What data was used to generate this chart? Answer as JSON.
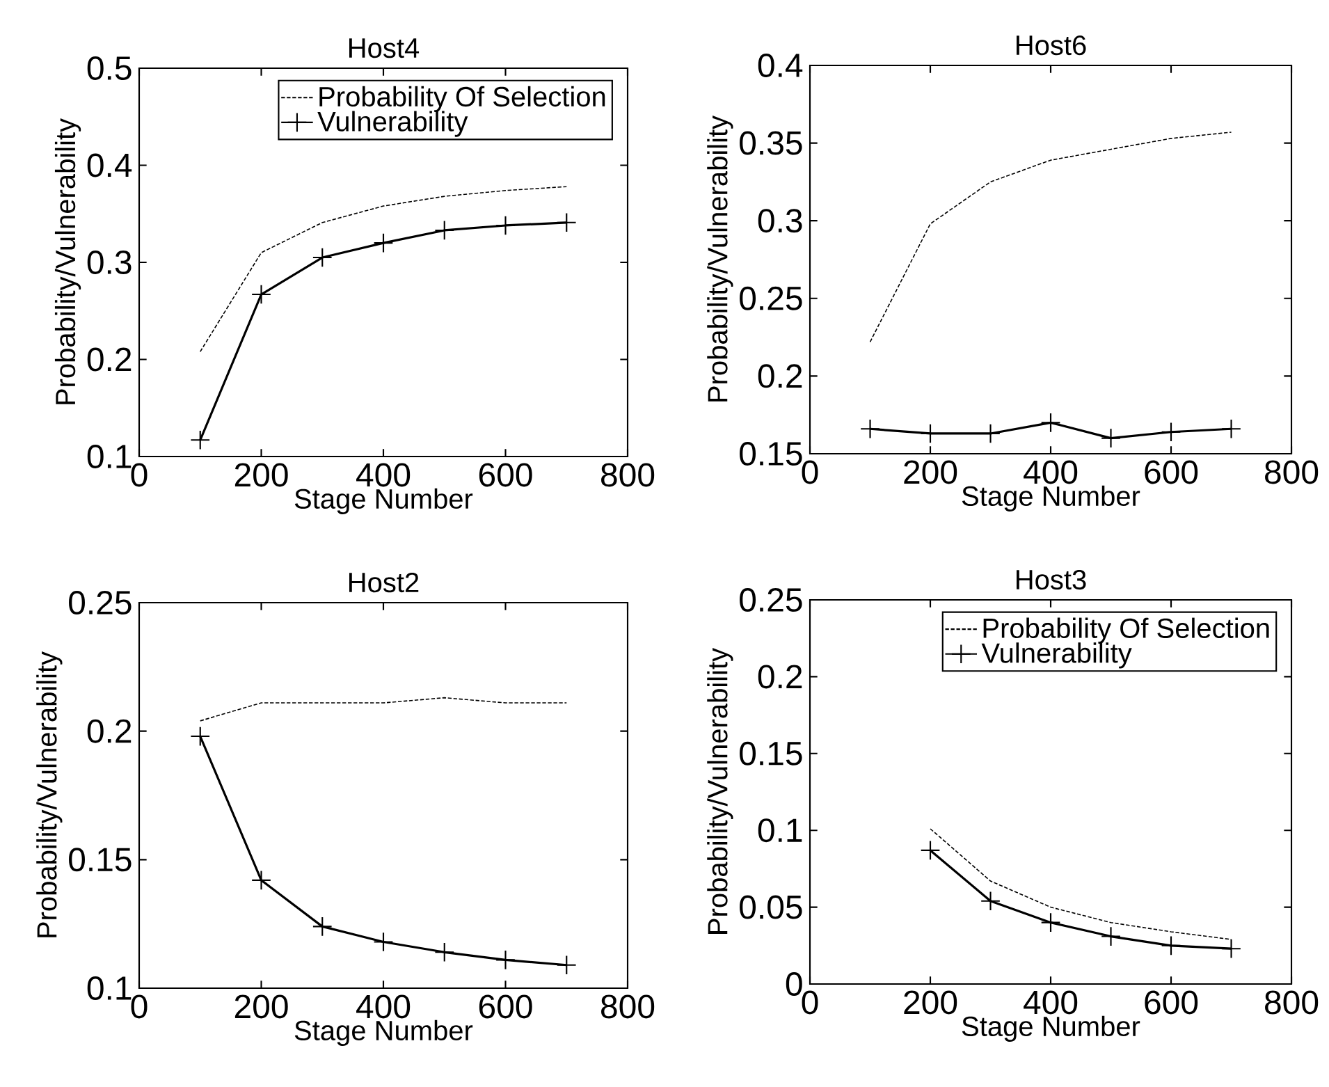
{
  "chart_data": [
    {
      "type": "line",
      "title": "Host4",
      "xlabel": "Stage Number",
      "ylabel": "Probability/Vulnerability",
      "x": [
        100,
        200,
        300,
        400,
        500,
        600,
        700
      ],
      "xlim": [
        0,
        800
      ],
      "xticks": [
        0,
        200,
        400,
        600,
        800
      ],
      "ylim": [
        0.1,
        0.5
      ],
      "yticks": [
        0.1,
        0.2,
        0.3,
        0.4,
        0.5
      ],
      "legend": "top right",
      "series": [
        {
          "name": "Probability Of Selection",
          "color": "#000000",
          "line_style": "dashed",
          "marker": "none",
          "values": [
            0.208,
            0.31,
            0.341,
            0.358,
            0.368,
            0.374,
            0.378
          ]
        },
        {
          "name": "Vulnerability",
          "color": "#000000",
          "line_style": "solid",
          "marker": "cross",
          "values": [
            0.117,
            0.267,
            0.305,
            0.32,
            0.333,
            0.338,
            0.341
          ]
        }
      ]
    },
    {
      "type": "line",
      "title": "Host6",
      "xlabel": "Stage Number",
      "ylabel": "Probability/Vulnerability",
      "x": [
        100,
        200,
        300,
        400,
        500,
        600,
        700
      ],
      "xlim": [
        0,
        800
      ],
      "xticks": [
        0,
        200,
        400,
        600,
        800
      ],
      "ylim": [
        0.15,
        0.4
      ],
      "yticks": [
        0.15,
        0.2,
        0.25,
        0.3,
        0.35,
        0.4
      ],
      "series": [
        {
          "color": "#000000",
          "line_style": "dashed",
          "marker": "none",
          "values": [
            0.222,
            0.298,
            0.325,
            0.339,
            0.346,
            0.353,
            0.357
          ]
        },
        {
          "color": "#000000",
          "line_style": "solid",
          "marker": "cross",
          "values": [
            0.166,
            0.163,
            0.163,
            0.17,
            0.16,
            0.164,
            0.166
          ]
        }
      ]
    },
    {
      "type": "line",
      "title": "Host2",
      "xlabel": "Stage Number",
      "ylabel": "Probability/Vulnerability",
      "x": [
        100,
        200,
        300,
        400,
        500,
        600,
        700
      ],
      "xlim": [
        0,
        800
      ],
      "xticks": [
        0,
        200,
        400,
        600,
        800
      ],
      "ylim": [
        0.1,
        0.25
      ],
      "yticks": [
        0.1,
        0.15,
        0.2,
        0.25
      ],
      "series": [
        {
          "color": "#000000",
          "line_style": "dashed",
          "marker": "none",
          "values": [
            0.204,
            0.211,
            0.211,
            0.211,
            0.213,
            0.211,
            0.211
          ]
        },
        {
          "color": "#000000",
          "line_style": "solid",
          "marker": "cross",
          "values": [
            0.198,
            0.142,
            0.124,
            0.118,
            0.114,
            0.111,
            0.109
          ]
        }
      ]
    },
    {
      "type": "line",
      "title": "Host3",
      "xlabel": "Stage Number",
      "ylabel": "Probability/Vulnerability",
      "xlim": [
        0,
        800
      ],
      "xticks": [
        0,
        200,
        400,
        600,
        800
      ],
      "ylim": [
        0,
        0.25
      ],
      "yticks": [
        0,
        0.05,
        0.1,
        0.15,
        0.2,
        0.25
      ],
      "legend": "top right",
      "series": [
        {
          "name": "Probability Of Selection",
          "color": "#000000",
          "line_style": "dashed",
          "marker": "none",
          "x": [
            200,
            300,
            400,
            500,
            600,
            700
          ],
          "values": [
            0.101,
            0.067,
            0.05,
            0.04,
            0.034,
            0.029
          ]
        },
        {
          "name": "Vulnerability",
          "color": "#000000",
          "line_style": "solid",
          "marker": "cross",
          "x": [
            200,
            300,
            400,
            500,
            600,
            700
          ],
          "values": [
            0.087,
            0.054,
            0.04,
            0.031,
            0.025,
            0.023
          ]
        }
      ]
    }
  ]
}
